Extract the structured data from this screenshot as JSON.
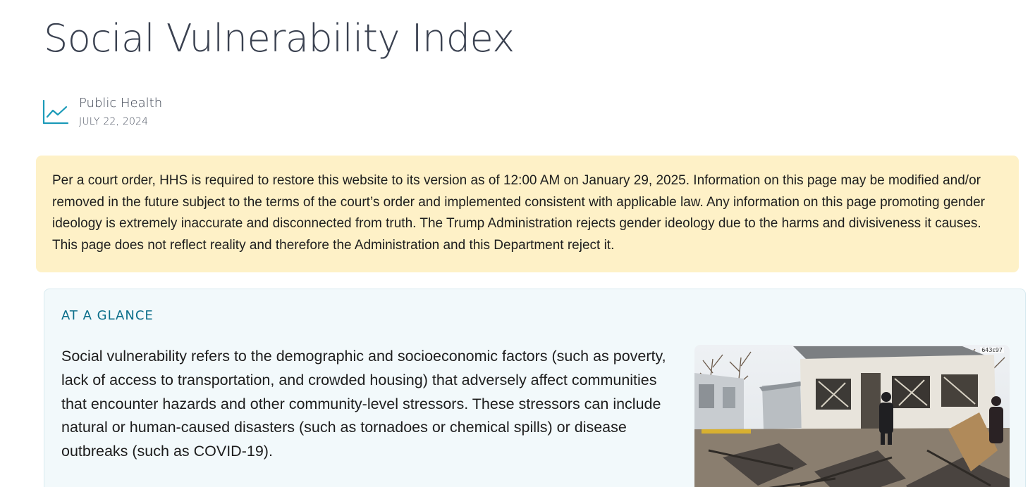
{
  "page": {
    "title": "Social Vulnerability Index"
  },
  "meta": {
    "topic_icon": "line-chart-icon",
    "topic": "Public Health",
    "date": "JULY 22, 2024"
  },
  "notice": {
    "text": "Per a court order, HHS is required to restore this website to its version as of 12:00 AM on January 29, 2025. Information on this page may be modified and/or removed in the future subject to the terms of the court’s order and implemented consistent with applicable law. Any information on this page promoting gender ideology is extremely inaccurate and disconnected from truth. The Trump Administration rejects gender ideology due to the harms and divisiveness it causes. This page does not reflect reality and therefore the Administration and this Department reject it."
  },
  "at_a_glance": {
    "heading": "AT A GLANCE",
    "body": "Social vulnerability refers to the demographic and socioeconomic factors (such as poverty, lack of access to transportation, and crowded housing) that adversely affect communities that encounter hazards and other community-level stressors. These stressors can include natural or human-caused disasters (such as tornadoes or chemical spills) or disease outbreaks (such as COVID-19).",
    "photo": {
      "credit": "643ε97"
    }
  },
  "colors": {
    "accent": "#0b6e8a",
    "notice_background": "#fef1c7",
    "glance_background": "#f2f9fb",
    "title_text": "#3a4150"
  }
}
